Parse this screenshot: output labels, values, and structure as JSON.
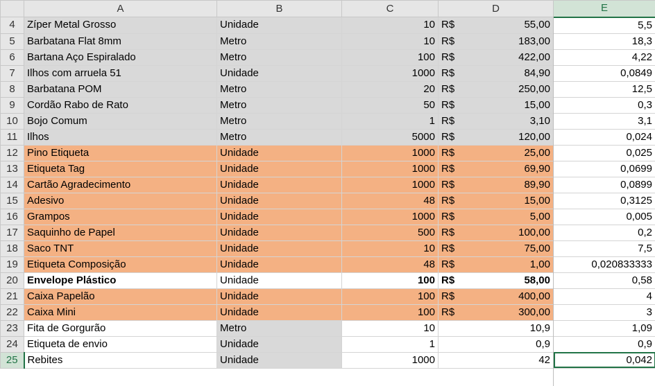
{
  "column_headers": [
    "A",
    "B",
    "C",
    "D",
    "E"
  ],
  "selected_column": "E",
  "active_row": "25",
  "rows": [
    {
      "n": "4",
      "a": "Zíper Metal Grosso",
      "b": "Unidade",
      "c": "10",
      "cur": "R$",
      "d": "55,00",
      "e": "5,5",
      "style": "gray"
    },
    {
      "n": "5",
      "a": "Barbatana Flat 8mm",
      "b": "Metro",
      "c": "10",
      "cur": "R$",
      "d": "183,00",
      "e": "18,3",
      "style": "gray"
    },
    {
      "n": "6",
      "a": "Bartana Aço Espiralado",
      "b": "Metro",
      "c": "100",
      "cur": "R$",
      "d": "422,00",
      "e": "4,22",
      "style": "gray"
    },
    {
      "n": "7",
      "a": "Ilhos com arruela 51",
      "b": "Unidade",
      "c": "1000",
      "cur": "R$",
      "d": "84,90",
      "e": "0,0849",
      "style": "gray"
    },
    {
      "n": "8",
      "a": "Barbatana POM",
      "b": "Metro",
      "c": "20",
      "cur": "R$",
      "d": "250,00",
      "e": "12,5",
      "style": "gray"
    },
    {
      "n": "9",
      "a": "Cordão Rabo de Rato",
      "b": "Metro",
      "c": "50",
      "cur": "R$",
      "d": "15,00",
      "e": "0,3",
      "style": "gray"
    },
    {
      "n": "10",
      "a": "Bojo Comum",
      "b": "Metro",
      "c": "1",
      "cur": "R$",
      "d": "3,10",
      "e": "3,1",
      "style": "gray"
    },
    {
      "n": "11",
      "a": "Ilhos",
      "b": "Metro",
      "c": "5000",
      "cur": "R$",
      "d": "120,00",
      "e": "0,024",
      "style": "gray"
    },
    {
      "n": "12",
      "a": "Pino Etiqueta",
      "b": "Unidade",
      "c": "1000",
      "cur": "R$",
      "d": "25,00",
      "e": "0,025",
      "style": "orange"
    },
    {
      "n": "13",
      "a": "Etiqueta Tag",
      "b": "Unidade",
      "c": "1000",
      "cur": "R$",
      "d": "69,90",
      "e": "0,0699",
      "style": "orange"
    },
    {
      "n": "14",
      "a": "Cartão Agradecimento",
      "b": "Unidade",
      "c": "1000",
      "cur": "R$",
      "d": "89,90",
      "e": "0,0899",
      "style": "orange"
    },
    {
      "n": "15",
      "a": "Adesivo",
      "b": "Unidade",
      "c": "48",
      "cur": "R$",
      "d": "15,00",
      "e": "0,3125",
      "style": "orange"
    },
    {
      "n": "16",
      "a": "Grampos",
      "b": "Unidade",
      "c": "1000",
      "cur": "R$",
      "d": "5,00",
      "e": "0,005",
      "style": "orange"
    },
    {
      "n": "17",
      "a": "Saquinho de Papel",
      "b": "Unidade",
      "c": "500",
      "cur": "R$",
      "d": "100,00",
      "e": "0,2",
      "style": "orange"
    },
    {
      "n": "18",
      "a": "Saco TNT",
      "b": "Unidade",
      "c": "10",
      "cur": "R$",
      "d": "75,00",
      "e": "7,5",
      "style": "orange"
    },
    {
      "n": "19",
      "a": "Etiqueta Composição",
      "b": "Unidade",
      "c": "48",
      "cur": "R$",
      "d": "1,00",
      "e": "0,020833333",
      "style": "orange"
    },
    {
      "n": "20",
      "a": "Envelope Plástico",
      "b": "Unidade",
      "c": "100",
      "cur": "R$",
      "d": "58,00",
      "e": "0,58",
      "style": "white bold"
    },
    {
      "n": "21",
      "a": "Caixa Papelão",
      "b": "Unidade",
      "c": "100",
      "cur": "R$",
      "d": "400,00",
      "e": "4",
      "style": "orange"
    },
    {
      "n": "22",
      "a": "Caixa Mini",
      "b": "Unidade",
      "c": "100",
      "cur": "R$",
      "d": "300,00",
      "e": "3",
      "style": "orange"
    },
    {
      "n": "23",
      "a": "Fita de Gorgurão",
      "b": "Metro",
      "c": "10",
      "cur": "",
      "d": "10,9",
      "e": "1,09",
      "style": "mixed"
    },
    {
      "n": "24",
      "a": "Etiqueta de envio",
      "b": "Unidade",
      "c": "1",
      "cur": "",
      "d": "0,9",
      "e": "0,9",
      "style": "mixed"
    },
    {
      "n": "25",
      "a": "Rebites",
      "b": "Unidade",
      "c": "1000",
      "cur": "",
      "d": "42",
      "e": "0,042",
      "style": "mixed"
    }
  ],
  "colors": {
    "gray_fill": "#d9d9d9",
    "orange_fill": "#f4b183",
    "selection_green": "#217346",
    "header_fill": "#e6e6e6"
  }
}
